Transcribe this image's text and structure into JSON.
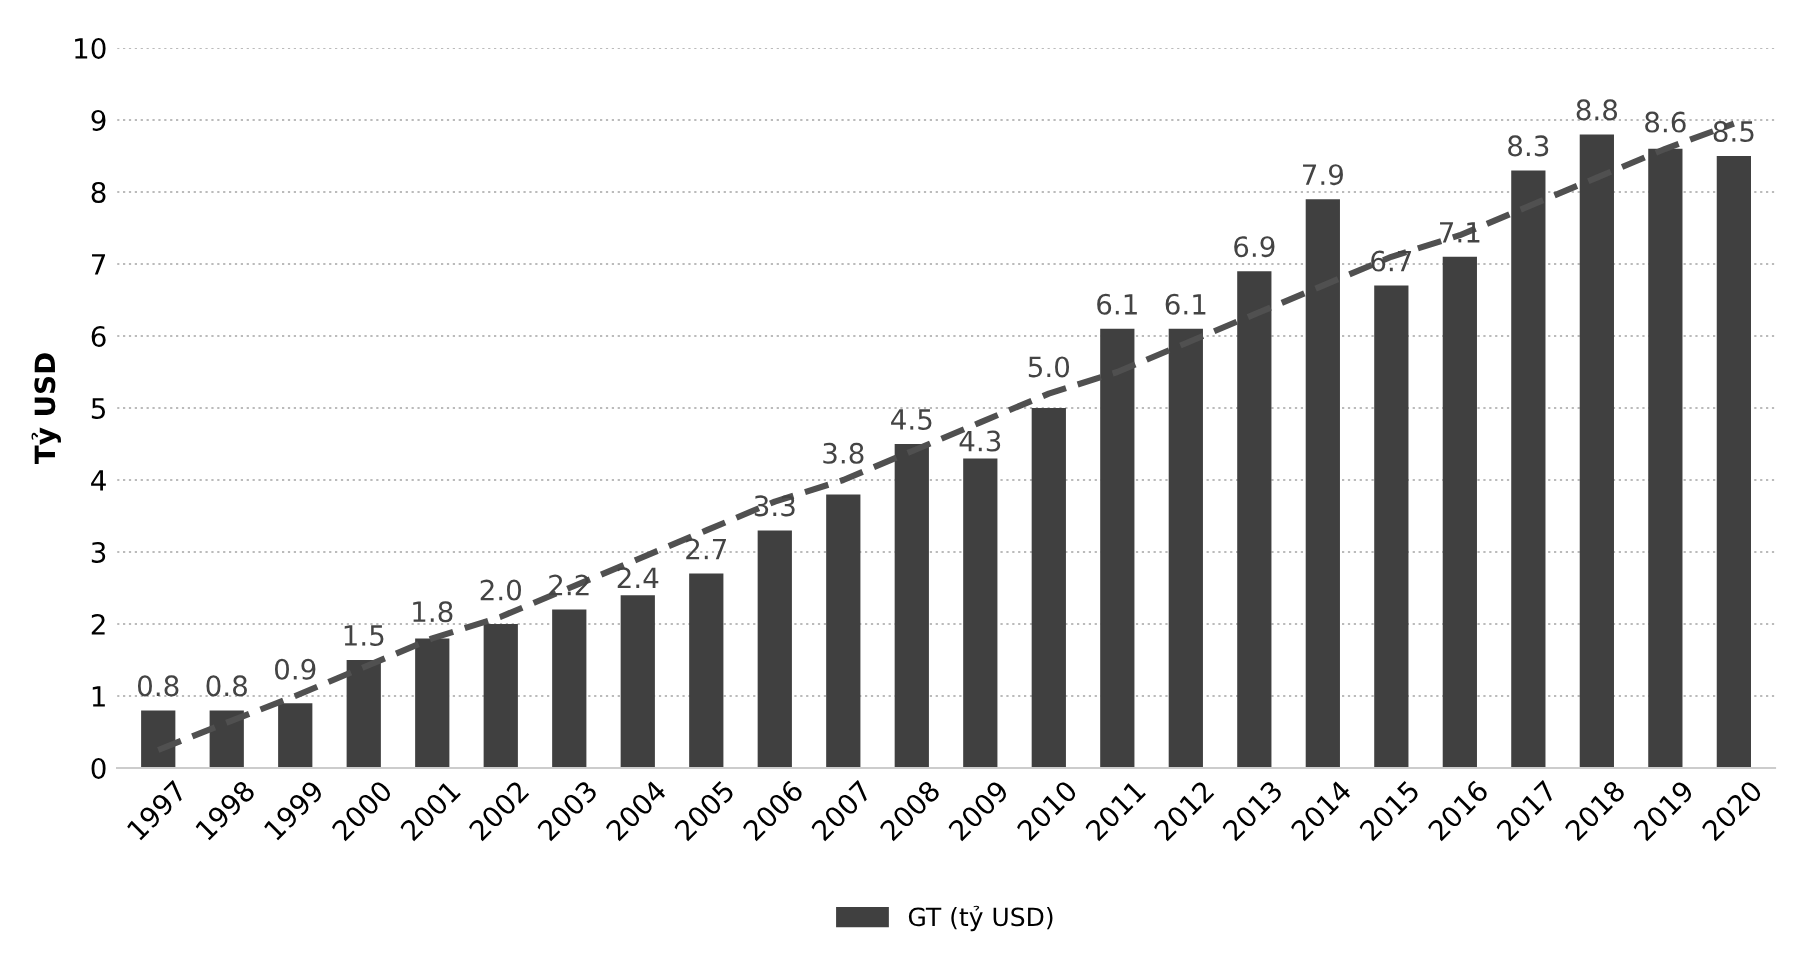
{
  "chart_data": {
    "type": "bar",
    "ylabel": "Tỷ USD",
    "categories": [
      "1997",
      "1998",
      "1999",
      "2000",
      "2001",
      "2002",
      "2003",
      "2004",
      "2005",
      "2006",
      "2007",
      "2008",
      "2009",
      "2010",
      "2011",
      "2012",
      "2013",
      "2014",
      "2015",
      "2016",
      "2017",
      "2018",
      "2019",
      "2020"
    ],
    "series": [
      {
        "name": "GT (tỷ USD)",
        "color": "#404040",
        "values": [
          0.8,
          0.8,
          0.9,
          1.5,
          1.8,
          2.0,
          2.2,
          2.4,
          2.7,
          3.3,
          3.8,
          4.5,
          4.3,
          5.0,
          6.1,
          6.1,
          6.9,
          7.9,
          6.7,
          7.1,
          8.3,
          8.8,
          8.6,
          8.5
        ],
        "value_labels": [
          "0.8",
          "0.8",
          "0.9",
          "1.5",
          "1.8",
          "2.0",
          "2.2",
          "2.4",
          "2.7",
          "3.3",
          "3.8",
          "4.5",
          "4.3",
          "5.0",
          "6.1",
          "6.1",
          "6.9",
          "7.9",
          "6.7",
          "7.1",
          "8.3",
          "8.8",
          "8.6",
          "8.5"
        ]
      },
      {
        "type": "line",
        "color": "#505050",
        "line_style": "dashed",
        "values": [
          0.25,
          0.63,
          1.0,
          1.4,
          1.8,
          2.1,
          2.5,
          2.9,
          3.3,
          3.7,
          4.0,
          4.4,
          4.8,
          5.2,
          5.5,
          5.9,
          6.3,
          6.7,
          7.1,
          7.4,
          7.8,
          8.2,
          8.6,
          8.95
        ]
      }
    ],
    "ylim": [
      0,
      10
    ],
    "yticks": [
      0,
      1,
      2,
      3,
      4,
      5,
      6,
      7,
      8,
      9,
      10
    ],
    "grid": "y",
    "legend": "bottom"
  }
}
